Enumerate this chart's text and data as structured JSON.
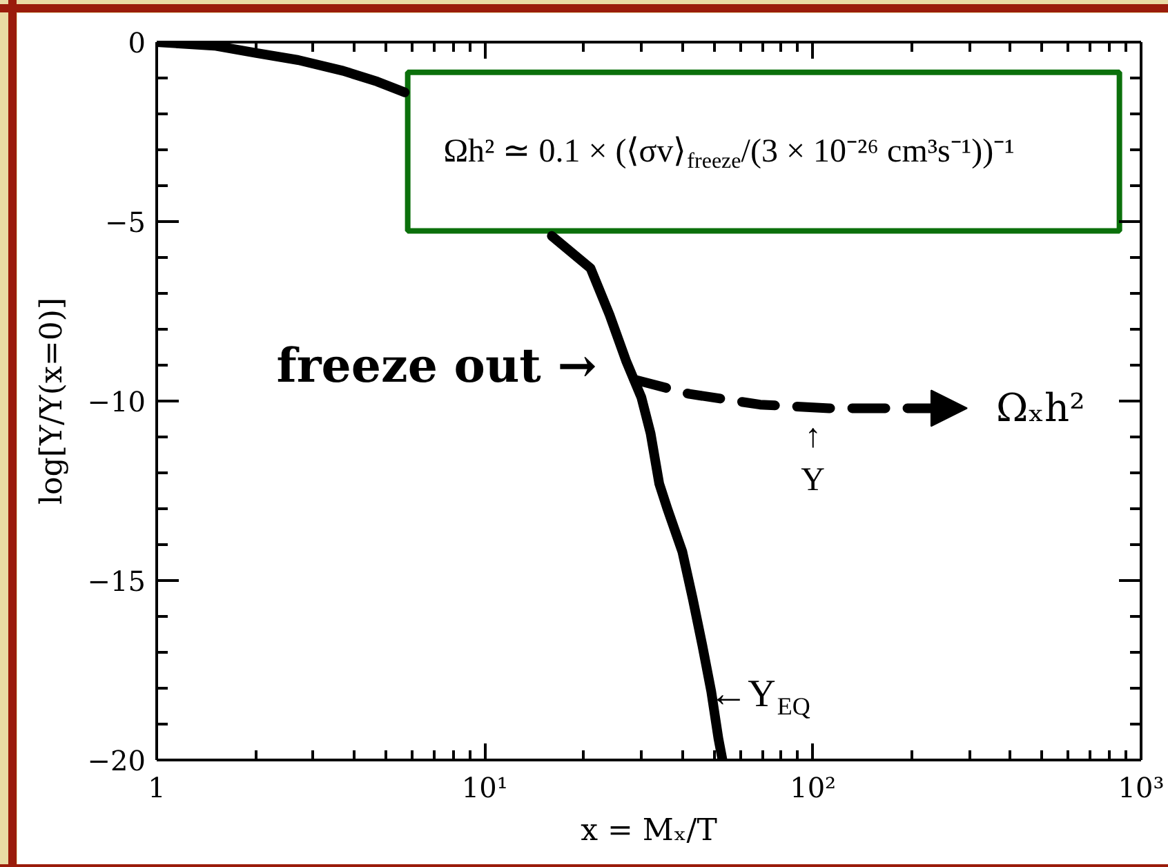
{
  "chart_data": {
    "type": "line",
    "xlabel": "x = Mₓ/T",
    "ylabel": "log[Y/Y(x=0)]",
    "log": "x",
    "xlim": [
      1,
      1000
    ],
    "ylim": [
      -20,
      0
    ],
    "xticks": [
      1,
      {
        "value": 10,
        "label": "10¹"
      },
      {
        "value": 100,
        "label": "10²"
      },
      {
        "value": 1000,
        "label": "10³"
      }
    ],
    "yticks": [
      -20,
      -15,
      -10,
      -5,
      0
    ],
    "grid": false,
    "series": [
      {
        "color": "#000000",
        "line_style": "solid",
        "x": [
          1,
          1.5,
          2,
          2.7,
          3.7,
          4.7,
          5.7,
          10,
          16,
          21,
          24,
          27,
          30,
          32,
          34,
          36,
          40,
          43,
          46,
          49,
          51.5,
          53
        ],
        "values": [
          0,
          -0.1,
          -0.3,
          -0.5,
          -0.8,
          -1.1,
          -1.4,
          null,
          -5.4,
          -6.3,
          -7.6,
          -8.9,
          -9.9,
          -10.9,
          -12.3,
          -13,
          -14.2,
          -15.5,
          -16.8,
          -18.1,
          -19.4,
          -20
        ]
      },
      {
        "color": "#000000",
        "line_style": "dashed",
        "x": [
          28.5,
          42,
          69,
          112,
          190,
          260
        ],
        "values": [
          -9.4,
          -9.8,
          -10.1,
          -10.2,
          -10.2,
          -10.2
        ]
      }
    ],
    "annotations": [
      "Ωh² ≃ 0.1 × (⟨σv⟩$_{freeze}$/(3 × 10⁻²⁶ cm³s⁻¹))⁻¹",
      "freeze out →",
      {
        "text": "Ωₓh²",
        "x": 260,
        "y": -10.2
      },
      {
        "text": "↑\nY",
        "x": 100,
        "y": -10.2
      },
      {
        "text": "←Y$_{EQ}$",
        "x": 49,
        "y": -18.1
      }
    ]
  }
}
